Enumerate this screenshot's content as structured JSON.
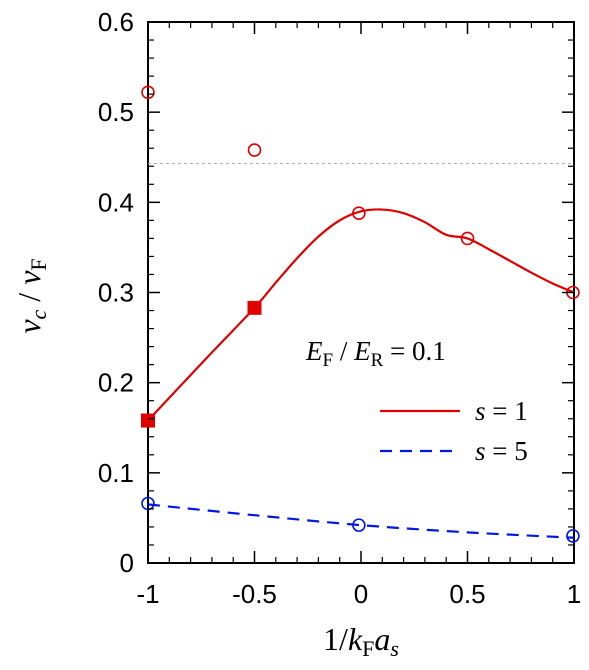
{
  "chart_data": {
    "type": "line",
    "xlabel": "1/k_F a_s",
    "ylabel": "v_c / v_F",
    "xlim": [
      -1,
      1
    ],
    "ylim": [
      0,
      0.6
    ],
    "x_ticks": [
      "-1",
      "-0.5",
      "0",
      "0.5",
      "1"
    ],
    "y_ticks": [
      "0",
      "0.1",
      "0.2",
      "0.3",
      "0.4",
      "0.5",
      "0.6"
    ],
    "x_tick_values": [
      -1,
      -0.5,
      0,
      0.5,
      1
    ],
    "y_tick_values": [
      0,
      0.1,
      0.2,
      0.3,
      0.4,
      0.5,
      0.6
    ],
    "grid": false,
    "legend_position": "right",
    "annotation": {
      "text": "E_F / E_R = 0.1",
      "E_F": "E",
      "F_sub": "F",
      "slash": " / ",
      "E_R": "E",
      "R_sub": "R",
      "equals": " = 0.1"
    },
    "reference_line": {
      "y": 0.443,
      "color": "#b0b0b0",
      "style": "dotted"
    },
    "series": [
      {
        "name": "s = 1",
        "color": "#e00000",
        "style": "solid",
        "x": [
          -1,
          -0.75,
          -0.5,
          -0.4,
          -0.3,
          -0.2,
          -0.1,
          0,
          0.1,
          0.2,
          0.3,
          0.4,
          0.5,
          0.6,
          0.7,
          0.8,
          0.9,
          1
        ],
        "y": [
          0.158,
          0.221,
          0.283,
          0.311,
          0.338,
          0.362,
          0.38,
          0.39,
          0.392,
          0.388,
          0.378,
          0.364,
          0.36,
          0.348,
          0.335,
          0.322,
          0.31,
          0.3
        ],
        "filled_markers": {
          "x": [
            -1,
            -0.5
          ],
          "y": [
            0.158,
            0.283
          ]
        },
        "open_markers": {
          "x": [
            -1,
            -0.5,
            -0.01,
            0.5,
            0.995
          ],
          "y": [
            0.522,
            0.458,
            0.388,
            0.36,
            0.3
          ]
        }
      },
      {
        "name": "s = 5",
        "color": "#0018e0",
        "style": "dashed",
        "x": [
          -1,
          -0.5,
          0,
          0.5,
          1
        ],
        "y": [
          0.065,
          0.053,
          0.042,
          0.034,
          0.028
        ],
        "open_markers": {
          "x": [
            -1,
            -0.01,
            0.995
          ],
          "y": [
            0.066,
            0.042,
            0.03
          ]
        }
      }
    ],
    "legend": [
      {
        "label_s": "s",
        "label_eq": " = 1",
        "series": 0
      },
      {
        "label_s": "s",
        "label_eq": " = 5",
        "series": 1
      }
    ]
  }
}
